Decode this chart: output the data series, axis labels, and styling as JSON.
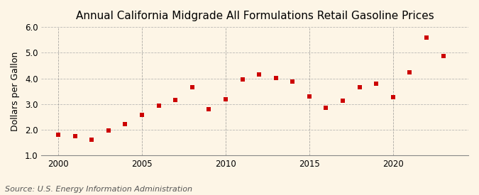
{
  "title": "Annual California Midgrade All Formulations Retail Gasoline Prices",
  "ylabel": "Dollars per Gallon",
  "source": "Source: U.S. Energy Information Administration",
  "background_color": "#fdf5e6",
  "years": [
    2000,
    2001,
    2002,
    2003,
    2004,
    2005,
    2006,
    2007,
    2008,
    2009,
    2010,
    2011,
    2012,
    2013,
    2014,
    2015,
    2016,
    2017,
    2018,
    2019,
    2020,
    2021,
    2022,
    2023
  ],
  "values": [
    1.82,
    1.77,
    1.63,
    1.97,
    2.23,
    2.58,
    2.93,
    3.16,
    3.65,
    2.8,
    3.2,
    3.95,
    4.15,
    4.02,
    3.88,
    3.3,
    2.86,
    3.13,
    3.67,
    3.8,
    3.27,
    4.24,
    5.6,
    4.87
  ],
  "marker_color": "#cc0000",
  "marker": "s",
  "marker_size": 16,
  "ylim": [
    1.0,
    6.0
  ],
  "xlim": [
    1999,
    2024.5
  ],
  "xticks": [
    2000,
    2005,
    2010,
    2015,
    2020
  ],
  "yticks": [
    1.0,
    2.0,
    3.0,
    4.0,
    5.0,
    6.0
  ],
  "grid_color": "#aaaaaa",
  "vgrid_color": "#888888",
  "title_fontsize": 11,
  "label_fontsize": 9,
  "tick_fontsize": 8.5,
  "source_fontsize": 8
}
